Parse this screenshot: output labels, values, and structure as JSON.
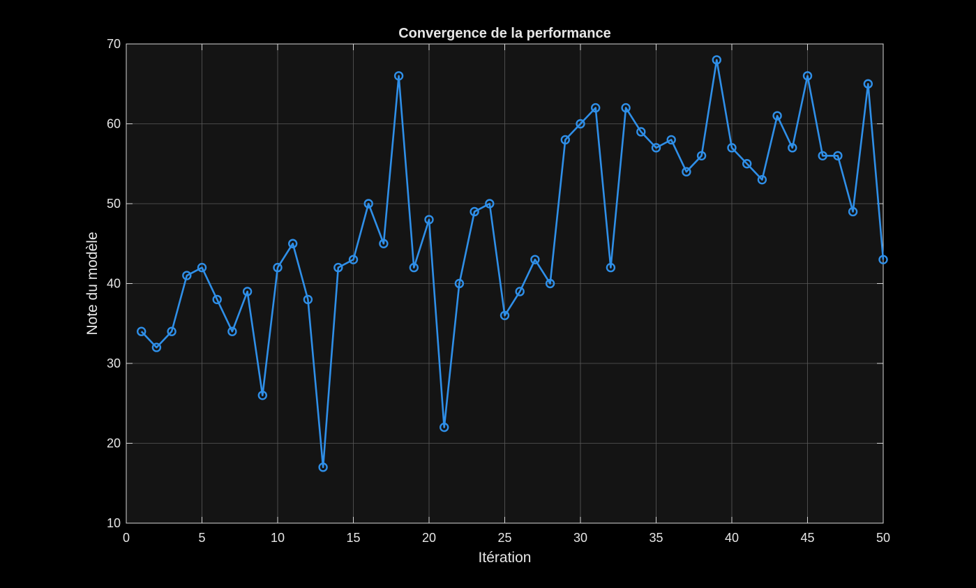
{
  "chart_data": {
    "type": "line",
    "title": "Convergence de la performance",
    "xlabel": "Itération",
    "ylabel": "Note du modèle",
    "xlim": [
      0,
      50
    ],
    "ylim": [
      10,
      70
    ],
    "xticks": [
      0,
      5,
      10,
      15,
      20,
      25,
      30,
      35,
      40,
      45,
      50
    ],
    "yticks": [
      10,
      20,
      30,
      40,
      50,
      60,
      70
    ],
    "grid": true,
    "marker": "circle",
    "series": [
      {
        "x": [
          1,
          2,
          3,
          4,
          5,
          6,
          7,
          8,
          9,
          10,
          11,
          12,
          13,
          14,
          15,
          16,
          17,
          18,
          19,
          20,
          21,
          22,
          23,
          24,
          25,
          26,
          27,
          28,
          29,
          30,
          31,
          32,
          33,
          34,
          35,
          36,
          37,
          38,
          39,
          40,
          41,
          42,
          43,
          44,
          45,
          46,
          47,
          48,
          49,
          50
        ],
        "values": [
          34,
          32,
          34,
          41,
          42,
          38,
          34,
          39,
          26,
          42,
          45,
          38,
          17,
          42,
          43,
          50,
          45,
          66,
          42,
          48,
          22,
          40,
          49,
          50,
          36,
          39,
          43,
          40,
          58,
          60,
          62,
          42,
          62,
          59,
          57,
          58,
          54,
          56,
          68,
          57,
          55,
          53,
          61,
          57,
          66,
          56,
          56,
          49,
          65,
          43
        ],
        "color": "#2f8fe8"
      }
    ]
  },
  "colors": {
    "background": "#000000",
    "plot_area": "#141414",
    "grid": "#5a5a5a",
    "axis": "#d9d9d9",
    "text": "#e6e6e6",
    "series": "#2f8fe8"
  }
}
